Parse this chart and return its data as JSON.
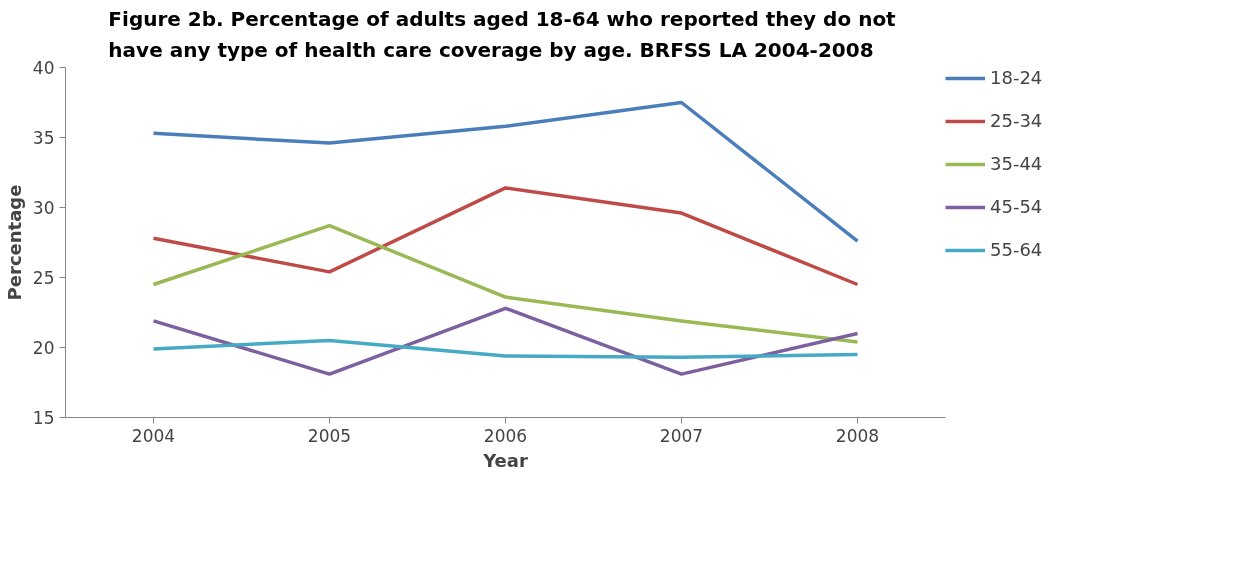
{
  "chart_data": {
    "type": "line",
    "title": "Figure 2b.  Percentage of adults aged 18-64 who reported they do not have any type of health care coverage by age.  BRFSS LA  2004-2008",
    "xlabel": "Year",
    "ylabel": "Percentage",
    "categories": [
      "2004",
      "2005",
      "2006",
      "2007",
      "2008"
    ],
    "ylim": [
      15,
      40
    ],
    "yticks": [
      15,
      20,
      25,
      30,
      35,
      40
    ],
    "grid": false,
    "legend": "right",
    "marker": "none",
    "line_style": "solid",
    "series": [
      {
        "name": "18-24",
        "color": "#4a7ebb",
        "values": [
          35.3,
          34.6,
          35.8,
          37.5,
          27.6
        ]
      },
      {
        "name": "25-34",
        "color": "#be4b48",
        "values": [
          27.8,
          25.4,
          31.4,
          29.6,
          24.5
        ]
      },
      {
        "name": "35-44",
        "color": "#98b954",
        "values": [
          24.5,
          28.7,
          23.6,
          21.9,
          20.4
        ]
      },
      {
        "name": "45-54",
        "color": "#7d60a0",
        "values": [
          21.9,
          18.1,
          22.8,
          18.1,
          21.0
        ]
      },
      {
        "name": "55-64",
        "color": "#46aac5",
        "values": [
          19.9,
          20.5,
          19.4,
          19.3,
          19.5
        ]
      }
    ]
  }
}
